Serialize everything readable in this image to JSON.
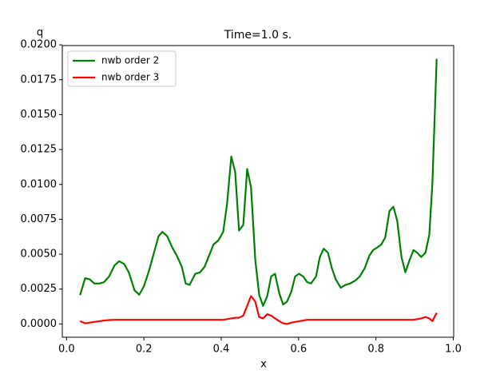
{
  "chart_data": {
    "type": "line",
    "title": "Time=1.0 s.",
    "xlabel": "x",
    "ylabel": "q",
    "x": [
      0.035,
      0.048,
      0.06,
      0.072,
      0.085,
      0.097,
      0.11,
      0.124,
      0.136,
      0.149,
      0.161,
      0.176,
      0.188,
      0.2,
      0.213,
      0.225,
      0.238,
      0.248,
      0.26,
      0.273,
      0.285,
      0.298,
      0.308,
      0.318,
      0.333,
      0.345,
      0.357,
      0.37,
      0.38,
      0.393,
      0.405,
      0.415,
      0.426,
      0.436,
      0.446,
      0.457,
      0.467,
      0.477,
      0.488,
      0.498,
      0.508,
      0.519,
      0.529,
      0.539,
      0.55,
      0.56,
      0.57,
      0.581,
      0.591,
      0.601,
      0.612,
      0.622,
      0.632,
      0.645,
      0.655,
      0.665,
      0.676,
      0.686,
      0.696,
      0.709,
      0.721,
      0.733,
      0.746,
      0.758,
      0.771,
      0.783,
      0.793,
      0.804,
      0.814,
      0.824,
      0.835,
      0.845,
      0.855,
      0.866,
      0.876,
      0.886,
      0.897,
      0.907,
      0.917,
      0.928,
      0.938,
      0.946,
      0.957
    ],
    "series": [
      {
        "name": "nwb order 2",
        "color": "#008000",
        "values": [
          0.00207,
          0.00328,
          0.0032,
          0.0029,
          0.0029,
          0.003,
          0.0034,
          0.0042,
          0.0045,
          0.0043,
          0.0037,
          0.0024,
          0.0021,
          0.0027,
          0.0038,
          0.005,
          0.0063,
          0.0066,
          0.0063,
          0.0055,
          0.0049,
          0.0041,
          0.0029,
          0.0028,
          0.0036,
          0.0037,
          0.0041,
          0.005,
          0.0057,
          0.006,
          0.0066,
          0.0086,
          0.012,
          0.0109,
          0.0067,
          0.0071,
          0.0111,
          0.0098,
          0.0046,
          0.0021,
          0.0013,
          0.002,
          0.0034,
          0.0036,
          0.0022,
          0.0014,
          0.0016,
          0.0023,
          0.0034,
          0.0036,
          0.0034,
          0.003,
          0.0029,
          0.0034,
          0.0048,
          0.0054,
          0.0051,
          0.004,
          0.0032,
          0.0026,
          0.0028,
          0.0029,
          0.0031,
          0.0034,
          0.004,
          0.0049,
          0.0053,
          0.0055,
          0.0057,
          0.0062,
          0.0081,
          0.0084,
          0.0074,
          0.0048,
          0.0037,
          0.0045,
          0.0053,
          0.0051,
          0.0048,
          0.0051,
          0.0064,
          0.0101,
          0.019
        ]
      },
      {
        "name": "nwb order 3",
        "color": "#ff0000",
        "values": [
          0.0002,
          5e-05,
          0.0001,
          0.00015,
          0.0002,
          0.00025,
          0.00028,
          0.0003,
          0.0003,
          0.0003,
          0.0003,
          0.0003,
          0.0003,
          0.0003,
          0.0003,
          0.0003,
          0.0003,
          0.0003,
          0.0003,
          0.0003,
          0.0003,
          0.0003,
          0.0003,
          0.0003,
          0.0003,
          0.0003,
          0.0003,
          0.0003,
          0.0003,
          0.0003,
          0.0003,
          0.00035,
          0.0004,
          0.00045,
          0.00045,
          0.0006,
          0.0013,
          0.002,
          0.0016,
          0.0005,
          0.0004,
          0.0007,
          0.0006,
          0.0004,
          0.0002,
          5e-05,
          0.0,
          0.0001,
          0.00015,
          0.0002,
          0.00025,
          0.0003,
          0.0003,
          0.0003,
          0.0003,
          0.0003,
          0.0003,
          0.0003,
          0.0003,
          0.0003,
          0.0003,
          0.0003,
          0.0003,
          0.0003,
          0.0003,
          0.0003,
          0.0003,
          0.0003,
          0.0003,
          0.0003,
          0.0003,
          0.0003,
          0.0003,
          0.0003,
          0.0003,
          0.0003,
          0.0003,
          0.00035,
          0.0004,
          0.0005,
          0.0004,
          0.0002,
          0.0008
        ]
      }
    ],
    "xlim": [
      -0.011,
      1.001
    ],
    "xticks": [
      {
        "value": 0,
        "label": "0.0"
      },
      0.2,
      0.4,
      0.6,
      0.8,
      {
        "value": 1,
        "label": "1.0"
      }
    ],
    "ylim": [
      -0.00095,
      0.01995
    ],
    "yticks": [
      {
        "value": 0,
        "label": "0.0000"
      },
      {
        "value": 0.0025,
        "label": "0.0025"
      },
      {
        "value": 0.005,
        "label": "0.0050"
      },
      {
        "value": 0.0075,
        "label": "0.0075"
      },
      {
        "value": 0.01,
        "label": "0.0100"
      },
      {
        "value": 0.0125,
        "label": "0.0125"
      },
      {
        "value": 0.015,
        "label": "0.0150"
      },
      {
        "value": 0.0175,
        "label": "0.0175"
      },
      {
        "value": 0.02,
        "label": "0.0200"
      }
    ],
    "legend": "upper left"
  }
}
